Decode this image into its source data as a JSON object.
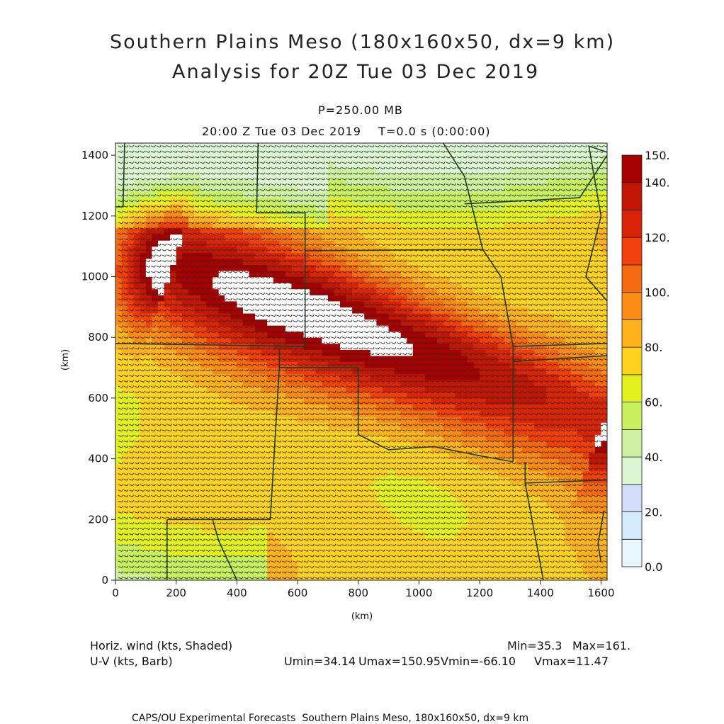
{
  "header": {
    "title_line1": "Southern Plains Meso (180x160x50, dx=9 km)",
    "title_line2": "Analysis for 20Z Tue 03 Dec 2019",
    "level": "P=250.00 MB",
    "valid_time": "20:00 Z Tue 03 Dec 2019    T=0.0 s (0:00:00)"
  },
  "colors": {
    "border": "#1f3d1f",
    "barb": "#2a2a2a",
    "bins": [
      "#e8f6fd",
      "#d4ecfb",
      "#d2dcf8",
      "#ddf6d2",
      "#cdf1a0",
      "#c8ef5e",
      "#e3f21c",
      "#ffd21e",
      "#ffb21a",
      "#fa8c14",
      "#f5690f",
      "#f23f0a",
      "#d92408",
      "#c21605",
      "#a60000"
    ]
  },
  "chart_data": {
    "type": "heatmap",
    "variable": "Horiz. wind (kts, Shaded)",
    "overlay": "U-V (kts, Barb)",
    "xlabel": "(km)",
    "ylabel": "(km)",
    "xlim": [
      0,
      1620
    ],
    "ylim": [
      0,
      1440
    ],
    "xticks": [
      0,
      200,
      400,
      600,
      800,
      1000,
      1200,
      1400,
      1600
    ],
    "yticks": [
      0,
      200,
      400,
      600,
      800,
      1000,
      1200,
      1400
    ],
    "colorbar": {
      "levels": [
        0,
        10,
        20,
        30,
        40,
        50,
        60,
        70,
        80,
        90,
        100,
        110,
        120,
        130,
        140,
        150
      ],
      "labels": [
        "0.0",
        "20.",
        "40.",
        "60.",
        "80.",
        "100.",
        "120.",
        "140.",
        "150."
      ],
      "label_levels": [
        0,
        20,
        40,
        60,
        80,
        100,
        120,
        140,
        150
      ]
    },
    "jet_axis": {
      "start": [
        190,
        1040
      ],
      "end": [
        1610,
        530
      ],
      "core_max_kts": 161
    },
    "stats": {
      "min": "Min=35.3",
      "max": "Max=161.",
      "umin": "Umin=34.14",
      "umax": "Umax=150.95",
      "vmin": "Vmin=-66.10",
      "vmax": "Vmax=11.47"
    }
  },
  "footer": {
    "label_variable": "Horiz. wind (kts, Shaded)",
    "label_overlay": "U-V (kts, Barb)",
    "credit": "CAPS/OU Experimental Forecasts  Southern Plains Meso, 180x160x50, dx=9 km"
  }
}
